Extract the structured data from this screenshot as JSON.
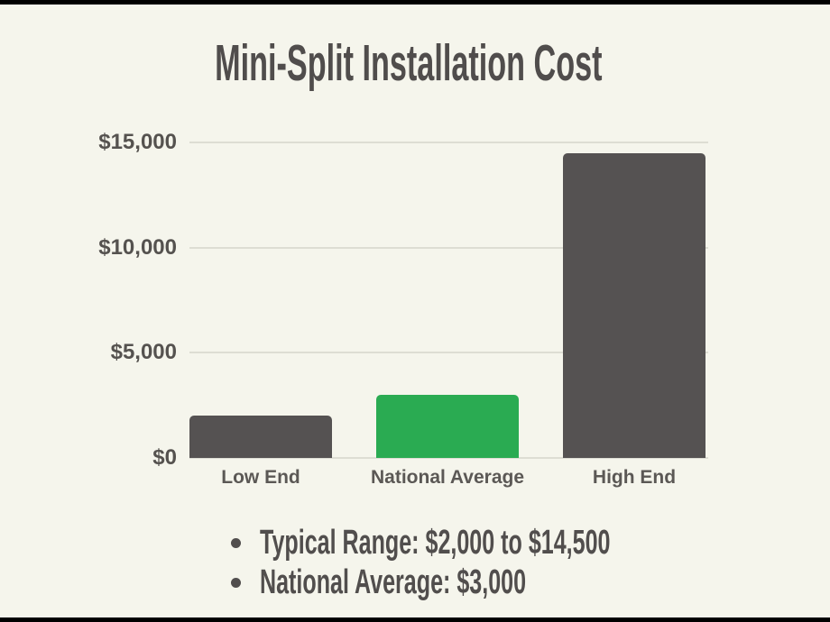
{
  "title": "Mini-Split Installation Cost",
  "chart_data": {
    "type": "bar",
    "title": "Mini-Split Installation Cost",
    "categories": [
      "Low End",
      "National Average",
      "High End"
    ],
    "values": [
      2000,
      3000,
      14500
    ],
    "bar_colors": [
      "#555252",
      "#2aab52",
      "#555252"
    ],
    "xlabel": "",
    "ylabel": "",
    "ylim": [
      0,
      15000
    ],
    "yticks": [
      0,
      5000,
      10000,
      15000
    ],
    "ytick_labels": [
      "$0",
      "$5,000",
      "$10,000",
      "$15,000"
    ],
    "grid": true,
    "legend": false,
    "annotations": [
      "Typical Range: $2,000 to $14,500",
      "National Average: $3,000"
    ]
  },
  "notes": [
    "Typical Range: $2,000 to $14,500",
    "National Average: $3,000"
  ],
  "colors": {
    "background": "#f5f5ec",
    "frame": "#000000",
    "bar_gray": "#555252",
    "bar_green": "#2aab52",
    "text_dark": "#514e4d",
    "axis_text": "#55524f",
    "gridline": "#ddddd3"
  }
}
